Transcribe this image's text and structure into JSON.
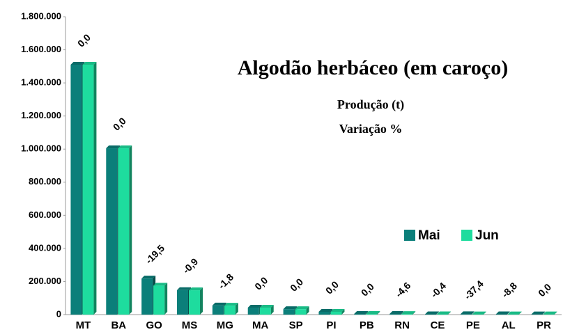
{
  "chart_data": {
    "type": "bar",
    "title": "Algodão herbáceo (em caroço)",
    "subtitle": [
      "Produção (t)",
      "Variação %"
    ],
    "categories": [
      "MT",
      "BA",
      "GO",
      "MS",
      "MG",
      "MA",
      "SP",
      "PI",
      "PB",
      "RN",
      "CE",
      "PE",
      "AL",
      "PR"
    ],
    "series": [
      {
        "name": "Mai",
        "color": "#0b7f7a",
        "values": [
          1510000,
          1005000,
          218000,
          148000,
          55000,
          42000,
          33000,
          17000,
          4000,
          4000,
          2000,
          2500,
          2000,
          1500
        ]
      },
      {
        "name": "Jun",
        "color": "#1edc9e",
        "values": [
          1510000,
          1005000,
          175000,
          147000,
          54000,
          42000,
          33000,
          17000,
          4000,
          3800,
          2000,
          1600,
          1800,
          1500
        ]
      }
    ],
    "variation_labels": [
      "0,0",
      "0,0",
      "-19,5",
      "-0,9",
      "-1,8",
      "0,0",
      "0,0",
      "0,0",
      "0,0",
      "-4,6",
      "-0,4",
      "-37,4",
      "-8,8",
      "0,0"
    ],
    "ylim": [
      0,
      1800000
    ],
    "yticks": [
      0,
      {
        "value": 200000,
        "label": "200.000"
      },
      {
        "value": 400000,
        "label": "400.000"
      },
      {
        "value": 600000,
        "label": "600.000"
      },
      {
        "value": 800000,
        "label": "800.000"
      },
      {
        "value": 1000000,
        "label": "1.000.000"
      },
      {
        "value": 1200000,
        "label": "1.200.000"
      },
      {
        "value": 1400000,
        "label": "1.400.000"
      },
      {
        "value": 1600000,
        "label": "1.600.000"
      },
      {
        "value": 1800000,
        "label": "1.800.000"
      }
    ],
    "grid": false,
    "legend": "right"
  }
}
